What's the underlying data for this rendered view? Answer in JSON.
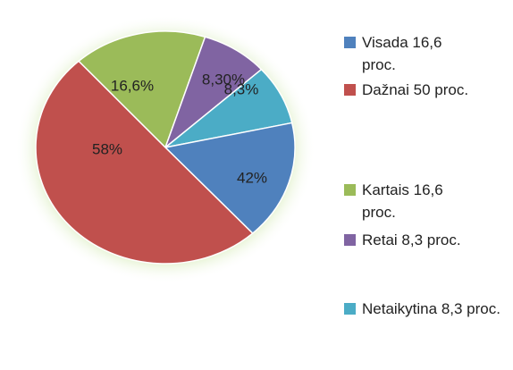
{
  "chart_data": {
    "type": "pie",
    "categories": [
      "Visada 16,6 proc.",
      "Dažnai 50 proc.",
      "Kartais 16,6 proc.",
      "Retai 8,3 proc.",
      "Netaikytina 8,3 proc."
    ],
    "values": [
      16.6,
      50,
      16.6,
      8.3,
      8.3
    ],
    "colors": [
      "#4f81bd",
      "#c0504d",
      "#9bbb59",
      "#8064a2",
      "#4bacc6"
    ],
    "annotations": [
      "16,6%",
      "8,30%",
      "8,3%",
      "58%",
      "42%"
    ],
    "legend": "right"
  }
}
